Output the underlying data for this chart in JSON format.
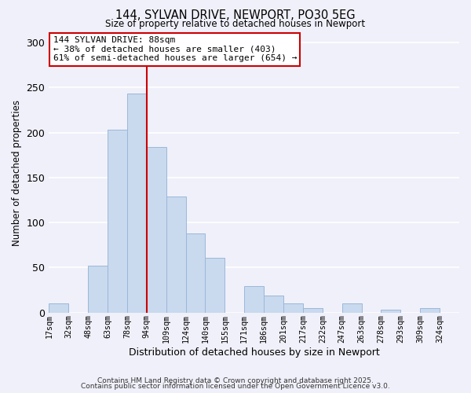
{
  "title": "144, SYLVAN DRIVE, NEWPORT, PO30 5EG",
  "subtitle": "Size of property relative to detached houses in Newport",
  "xlabel": "Distribution of detached houses by size in Newport",
  "ylabel": "Number of detached properties",
  "bar_labels": [
    "17sqm",
    "32sqm",
    "48sqm",
    "63sqm",
    "78sqm",
    "94sqm",
    "109sqm",
    "124sqm",
    "140sqm",
    "155sqm",
    "171sqm",
    "186sqm",
    "201sqm",
    "217sqm",
    "232sqm",
    "247sqm",
    "263sqm",
    "278sqm",
    "293sqm",
    "309sqm",
    "324sqm"
  ],
  "bar_values": [
    10,
    0,
    52,
    203,
    243,
    184,
    129,
    88,
    61,
    0,
    29,
    19,
    10,
    5,
    0,
    10,
    0,
    3,
    0,
    5,
    0
  ],
  "bar_color": "#c9d9ee",
  "bar_edge_color": "#9ab8d8",
  "vline_index": 5,
  "vline_color": "#cc0000",
  "annotation_title": "144 SYLVAN DRIVE: 88sqm",
  "annotation_line1": "← 38% of detached houses are smaller (403)",
  "annotation_line2": "61% of semi-detached houses are larger (654) →",
  "annotation_box_color": "#ffffff",
  "annotation_box_edge": "#cc0000",
  "ylim": [
    0,
    310
  ],
  "yticks": [
    0,
    50,
    100,
    150,
    200,
    250,
    300
  ],
  "footer1": "Contains HM Land Registry data © Crown copyright and database right 2025.",
  "footer2": "Contains public sector information licensed under the Open Government Licence v3.0.",
  "bg_color": "#f0f0fa",
  "grid_color": "#ffffff"
}
